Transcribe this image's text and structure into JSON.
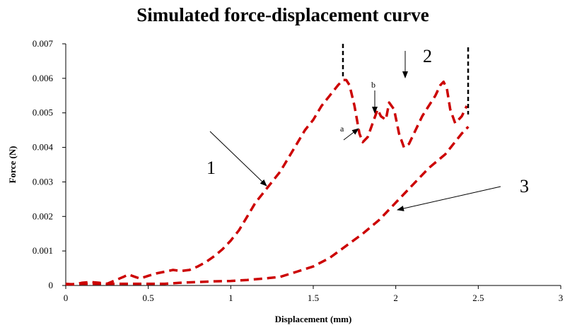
{
  "chart_data": {
    "type": "line",
    "title": "Simulated force-displacement curve",
    "xlabel": "Displacement (mm)",
    "ylabel": "Force (N)",
    "xlim": [
      0,
      3
    ],
    "ylim": [
      0,
      0.007
    ],
    "xticks": [
      "0",
      "0.5",
      "1",
      "1.5",
      "2",
      "2.5",
      "3"
    ],
    "yticks": [
      "0",
      "0.001",
      "0.002",
      "0.003",
      "0.004",
      "0.005",
      "0.006",
      "0.007"
    ],
    "grid": false,
    "series_color": "#cc0000",
    "series": [
      {
        "x": [
          0,
          0.05,
          0.1,
          0.15,
          0.2,
          0.25,
          0.3,
          0.35,
          0.38,
          0.42,
          0.45,
          0.5,
          0.55,
          0.6,
          0.65,
          0.7,
          0.75,
          0.8,
          0.85,
          0.9,
          0.95,
          1.0,
          1.05,
          1.1,
          1.15,
          1.2,
          1.25,
          1.3,
          1.35,
          1.4,
          1.45,
          1.5,
          1.55,
          1.6,
          1.65,
          1.68,
          1.7,
          1.72,
          1.75,
          1.78,
          1.8,
          1.83,
          1.86,
          1.89,
          1.91,
          1.94,
          1.96,
          1.99,
          2.02,
          2.05,
          2.08,
          2.12,
          2.16,
          2.2,
          2.24,
          2.27,
          2.29,
          2.31,
          2.33,
          2.36,
          2.4,
          2.43
        ],
        "y": [
          5e-05,
          3e-05,
          8e-05,
          0.0001,
          8e-05,
          5e-05,
          0.00015,
          0.00025,
          0.00032,
          0.00025,
          0.0002,
          0.00028,
          0.00035,
          0.0004,
          0.00045,
          0.00042,
          0.00045,
          0.00055,
          0.00068,
          0.00085,
          0.00105,
          0.0013,
          0.0016,
          0.002,
          0.0024,
          0.0027,
          0.003,
          0.0033,
          0.0037,
          0.0041,
          0.0045,
          0.0048,
          0.0052,
          0.0055,
          0.0058,
          0.00595,
          0.00595,
          0.0058,
          0.0052,
          0.0044,
          0.00415,
          0.0043,
          0.0047,
          0.0051,
          0.0049,
          0.0048,
          0.0053,
          0.0051,
          0.0044,
          0.004,
          0.0041,
          0.0045,
          0.0049,
          0.0052,
          0.0055,
          0.0058,
          0.0059,
          0.0057,
          0.0051,
          0.0047,
          0.0049,
          0.0052
        ]
      },
      {
        "x": [
          0,
          0.1,
          0.2,
          0.3,
          0.4,
          0.5,
          0.6,
          0.7,
          0.8,
          0.9,
          1.0,
          1.1,
          1.2,
          1.3,
          1.4,
          1.5,
          1.6,
          1.7,
          1.8,
          1.9,
          2.0,
          2.1,
          2.2,
          2.3,
          2.35,
          2.4,
          2.44
        ],
        "y": [
          3e-05,
          5e-05,
          5e-05,
          5e-05,
          5e-05,
          5e-05,
          5e-05,
          8e-05,
          0.0001,
          0.00012,
          0.00013,
          0.00016,
          0.0002,
          0.00025,
          0.0004,
          0.00055,
          0.0008,
          0.00115,
          0.0015,
          0.0019,
          0.0024,
          0.0029,
          0.0034,
          0.0038,
          0.0041,
          0.0044,
          0.0046
        ]
      }
    ],
    "annotations": [
      {
        "text": "1",
        "kind": "big"
      },
      {
        "text": "2",
        "kind": "big"
      },
      {
        "text": "3",
        "kind": "big"
      },
      {
        "text": "a",
        "kind": "small"
      },
      {
        "text": "b",
        "kind": "small"
      }
    ]
  }
}
